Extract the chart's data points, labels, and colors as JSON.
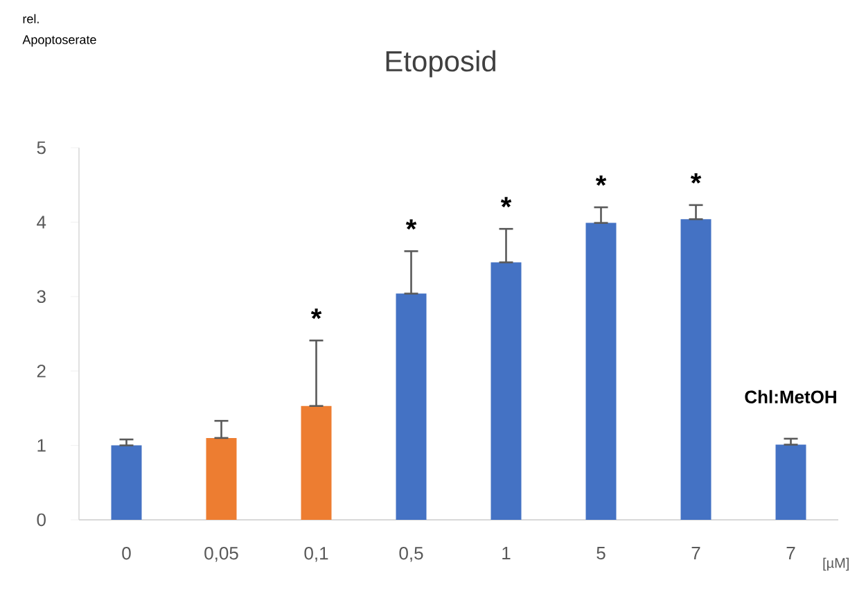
{
  "chart_data": {
    "type": "bar",
    "title": "Etoposid",
    "xlabel": "[µM]",
    "categories": [
      "0",
      "0,05",
      "0,1",
      "0,5",
      "1",
      "5",
      "7",
      "7"
    ],
    "values": [
      1.0,
      1.1,
      1.53,
      3.04,
      3.46,
      3.99,
      4.04,
      1.01
    ],
    "colors": [
      "#4472c4",
      "#ed7d31",
      "#ed7d31",
      "#4472c4",
      "#4472c4",
      "#4472c4",
      "#4472c4",
      "#4472c4"
    ],
    "errors": [
      [
        1.0,
        1.08
      ],
      [
        1.1,
        1.33
      ],
      [
        1.53,
        2.41
      ],
      [
        3.04,
        3.61
      ],
      [
        3.46,
        3.91
      ],
      [
        3.99,
        4.2
      ],
      [
        4.04,
        4.23
      ],
      [
        1.01,
        1.09
      ]
    ],
    "ylim": [
      0,
      5
    ],
    "yticks": [
      0,
      1,
      2,
      3,
      4,
      5
    ],
    "annotations": [
      "rel. Apoptoserate",
      "*",
      "*",
      "*",
      "*",
      "*",
      "Chl:MetOH"
    ]
  }
}
